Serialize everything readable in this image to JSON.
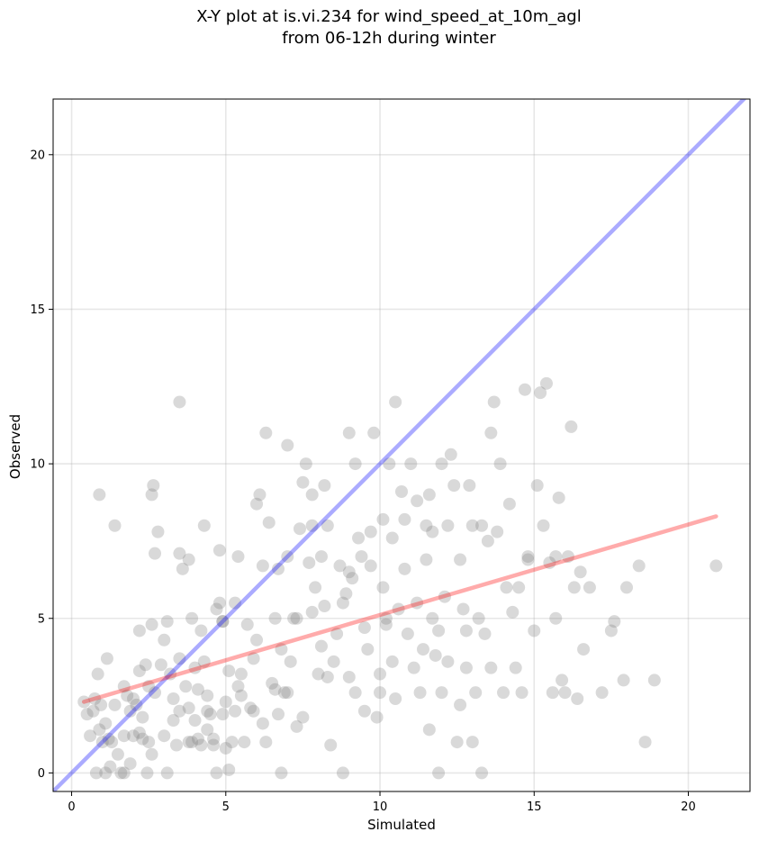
{
  "chart_data": {
    "type": "scatter",
    "title": [
      "X-Y plot at is.vi.234 for wind_speed_at_10m_agl",
      "from 06-12h during winter"
    ],
    "xlabel": "Simulated",
    "ylabel": "Observed",
    "xlim": [
      -0.6,
      22.0
    ],
    "ylim": [
      -0.6,
      21.8
    ],
    "xticks": [
      0,
      5,
      10,
      15,
      20
    ],
    "yticks": [
      0,
      5,
      10,
      15,
      20
    ],
    "grid": true,
    "colors": {
      "points": "#808080",
      "identity_line": "#0000ff",
      "fit_line": "#ff0000"
    },
    "lines": [
      {
        "kind": "one-to-one",
        "x": [
          -0.6,
          22.0
        ],
        "y": [
          -0.6,
          22.0
        ],
        "color": "#0000ff"
      },
      {
        "kind": "linear-fit",
        "x": [
          0.4,
          20.9
        ],
        "y": [
          2.3,
          8.3
        ],
        "color": "#ff0000"
      }
    ],
    "points": [
      [
        0.4,
        2.3
      ],
      [
        0.5,
        1.9
      ],
      [
        0.6,
        1.2
      ],
      [
        0.7,
        2.0
      ],
      [
        0.75,
        2.4
      ],
      [
        0.8,
        0.0
      ],
      [
        0.85,
        3.2
      ],
      [
        0.9,
        1.4
      ],
      [
        0.95,
        2.2
      ],
      [
        1.0,
        1.0
      ],
      [
        0.9,
        9.0
      ],
      [
        1.1,
        1.6
      ],
      [
        1.1,
        0.0
      ],
      [
        1.2,
        1.1
      ],
      [
        1.15,
        3.7
      ],
      [
        1.25,
        0.2
      ],
      [
        1.3,
        1.0
      ],
      [
        1.4,
        2.2
      ],
      [
        1.4,
        8.0
      ],
      [
        1.5,
        0.6
      ],
      [
        1.6,
        0.0
      ],
      [
        1.7,
        1.2
      ],
      [
        1.7,
        0.0
      ],
      [
        1.8,
        2.5
      ],
      [
        1.9,
        2.0
      ],
      [
        1.9,
        0.3
      ],
      [
        2.0,
        2.4
      ],
      [
        2.0,
        1.2
      ],
      [
        2.1,
        2.2
      ],
      [
        2.2,
        4.6
      ],
      [
        2.2,
        3.3
      ],
      [
        2.3,
        1.1
      ],
      [
        2.3,
        1.8
      ],
      [
        2.4,
        3.5
      ],
      [
        2.45,
        0.0
      ],
      [
        2.5,
        2.8
      ],
      [
        2.5,
        1.0
      ],
      [
        2.6,
        4.8
      ],
      [
        2.6,
        0.6
      ],
      [
        2.7,
        2.6
      ],
      [
        2.6,
        9.0
      ],
      [
        2.65,
        9.3
      ],
      [
        2.7,
        7.1
      ],
      [
        2.8,
        7.8
      ],
      [
        2.9,
        3.5
      ],
      [
        3.0,
        1.2
      ],
      [
        3.0,
        4.3
      ],
      [
        3.1,
        4.9
      ],
      [
        3.1,
        0.0
      ],
      [
        3.2,
        3.2
      ],
      [
        3.3,
        2.4
      ],
      [
        3.3,
        1.7
      ],
      [
        3.4,
        0.9
      ],
      [
        3.5,
        2.0
      ],
      [
        3.5,
        3.7
      ],
      [
        3.5,
        12.0
      ],
      [
        3.5,
        7.1
      ],
      [
        3.6,
        6.6
      ],
      [
        3.7,
        2.8
      ],
      [
        3.8,
        6.9
      ],
      [
        3.8,
        2.1
      ],
      [
        3.9,
        1.0
      ],
      [
        3.9,
        5.0
      ],
      [
        4.0,
        3.4
      ],
      [
        4.0,
        1.7
      ],
      [
        4.1,
        2.7
      ],
      [
        4.1,
        1.1
      ],
      [
        4.2,
        0.9
      ],
      [
        4.2,
        4.6
      ],
      [
        4.3,
        3.6
      ],
      [
        4.3,
        8.0
      ],
      [
        4.4,
        2.5
      ],
      [
        4.4,
        1.4
      ],
      [
        4.5,
        1.9
      ],
      [
        4.6,
        0.9
      ],
      [
        4.6,
        1.1
      ],
      [
        4.7,
        0.0
      ],
      [
        4.7,
        5.3
      ],
      [
        4.8,
        5.5
      ],
      [
        4.8,
        7.2
      ],
      [
        4.9,
        1.9
      ],
      [
        4.9,
        4.9
      ],
      [
        5.0,
        2.3
      ],
      [
        5.0,
        0.8
      ],
      [
        5.1,
        0.1
      ],
      [
        5.1,
        3.3
      ],
      [
        5.2,
        1.0
      ],
      [
        5.3,
        2.0
      ],
      [
        5.3,
        5.5
      ],
      [
        5.4,
        7.0
      ],
      [
        5.4,
        2.8
      ],
      [
        5.5,
        2.5
      ],
      [
        5.5,
        3.2
      ],
      [
        5.6,
        1.0
      ],
      [
        5.7,
        4.8
      ],
      [
        5.8,
        2.1
      ],
      [
        5.9,
        3.7
      ],
      [
        6.0,
        4.3
      ],
      [
        6.0,
        8.7
      ],
      [
        6.1,
        9.0
      ],
      [
        6.2,
        1.6
      ],
      [
        6.2,
        6.7
      ],
      [
        6.3,
        11.0
      ],
      [
        6.3,
        1.0
      ],
      [
        6.4,
        8.1
      ],
      [
        6.5,
        2.9
      ],
      [
        6.6,
        2.7
      ],
      [
        6.6,
        5.0
      ],
      [
        6.7,
        6.6
      ],
      [
        6.8,
        0.0
      ],
      [
        6.8,
        4.0
      ],
      [
        6.9,
        2.6
      ],
      [
        7.0,
        10.6
      ],
      [
        7.0,
        7.0
      ],
      [
        7.0,
        2.6
      ],
      [
        7.1,
        3.6
      ],
      [
        7.2,
        5.0
      ],
      [
        7.3,
        1.5
      ],
      [
        7.4,
        7.9
      ],
      [
        7.5,
        9.4
      ],
      [
        7.5,
        1.8
      ],
      [
        7.6,
        10.0
      ],
      [
        7.7,
        6.8
      ],
      [
        7.8,
        5.2
      ],
      [
        7.8,
        9.0
      ],
      [
        7.9,
        6.0
      ],
      [
        8.0,
        3.2
      ],
      [
        8.1,
        7.0
      ],
      [
        8.1,
        4.1
      ],
      [
        8.2,
        5.4
      ],
      [
        8.2,
        9.3
      ],
      [
        8.3,
        8.0
      ],
      [
        8.4,
        0.9
      ],
      [
        8.5,
        3.6
      ],
      [
        8.6,
        4.5
      ],
      [
        8.7,
        6.7
      ],
      [
        8.8,
        5.5
      ],
      [
        8.9,
        5.8
      ],
      [
        9.0,
        3.1
      ],
      [
        9.0,
        6.5
      ],
      [
        9.1,
        6.3
      ],
      [
        9.2,
        10.0
      ],
      [
        9.3,
        7.6
      ],
      [
        9.4,
        7.0
      ],
      [
        9.5,
        2.0
      ],
      [
        9.5,
        4.7
      ],
      [
        9.6,
        4.0
      ],
      [
        9.7,
        6.7
      ],
      [
        9.7,
        7.8
      ],
      [
        9.8,
        11.0
      ],
      [
        9.9,
        1.8
      ],
      [
        10.0,
        2.6
      ],
      [
        10.0,
        3.2
      ],
      [
        10.1,
        6.0
      ],
      [
        10.1,
        8.2
      ],
      [
        10.2,
        4.8
      ],
      [
        10.2,
        5.0
      ],
      [
        10.3,
        10.0
      ],
      [
        10.4,
        7.6
      ],
      [
        10.5,
        2.4
      ],
      [
        10.5,
        12.0
      ],
      [
        10.6,
        5.3
      ],
      [
        10.7,
        9.1
      ],
      [
        10.8,
        6.6
      ],
      [
        10.9,
        4.5
      ],
      [
        11.0,
        10.0
      ],
      [
        11.1,
        3.4
      ],
      [
        11.2,
        8.8
      ],
      [
        11.2,
        5.5
      ],
      [
        11.3,
        2.6
      ],
      [
        11.4,
        4.0
      ],
      [
        11.5,
        6.9
      ],
      [
        11.5,
        8.0
      ],
      [
        11.6,
        1.4
      ],
      [
        11.7,
        5.0
      ],
      [
        11.7,
        7.8
      ],
      [
        11.8,
        3.8
      ],
      [
        11.9,
        0.0
      ],
      [
        12.0,
        10.0
      ],
      [
        12.0,
        2.6
      ],
      [
        12.1,
        5.7
      ],
      [
        12.2,
        8.0
      ],
      [
        12.2,
        3.6
      ],
      [
        12.3,
        10.3
      ],
      [
        12.4,
        9.3
      ],
      [
        12.5,
        1.0
      ],
      [
        12.6,
        6.9
      ],
      [
        12.7,
        5.3
      ],
      [
        12.8,
        3.4
      ],
      [
        12.8,
        4.6
      ],
      [
        12.9,
        9.3
      ],
      [
        13.0,
        8.0
      ],
      [
        13.0,
        1.0
      ],
      [
        13.1,
        2.6
      ],
      [
        13.2,
        5.0
      ],
      [
        13.3,
        8.0
      ],
      [
        13.4,
        4.5
      ],
      [
        13.5,
        7.5
      ],
      [
        13.6,
        3.4
      ],
      [
        13.6,
        11.0
      ],
      [
        13.7,
        12.0
      ],
      [
        13.8,
        7.8
      ],
      [
        13.9,
        10.0
      ],
      [
        14.0,
        2.6
      ],
      [
        14.1,
        6.0
      ],
      [
        14.2,
        8.7
      ],
      [
        14.3,
        5.2
      ],
      [
        14.4,
        3.4
      ],
      [
        14.5,
        6.0
      ],
      [
        14.6,
        2.6
      ],
      [
        14.7,
        12.4
      ],
      [
        14.8,
        7.0
      ],
      [
        15.0,
        4.6
      ],
      [
        15.1,
        9.3
      ],
      [
        15.2,
        12.3
      ],
      [
        15.3,
        8.0
      ],
      [
        15.4,
        12.6
      ],
      [
        15.5,
        6.8
      ],
      [
        15.6,
        2.6
      ],
      [
        15.7,
        7.0
      ],
      [
        15.8,
        8.9
      ],
      [
        15.9,
        3.0
      ],
      [
        16.0,
        2.6
      ],
      [
        16.1,
        7.0
      ],
      [
        16.2,
        11.2
      ],
      [
        16.3,
        6.0
      ],
      [
        16.4,
        2.4
      ],
      [
        16.5,
        6.5
      ],
      [
        16.6,
        4.0
      ],
      [
        16.8,
        6.0
      ],
      [
        17.2,
        2.6
      ],
      [
        17.5,
        4.6
      ],
      [
        17.6,
        4.9
      ],
      [
        17.9,
        3.0
      ],
      [
        18.0,
        6.0
      ],
      [
        18.4,
        6.7
      ],
      [
        18.6,
        1.0
      ],
      [
        18.9,
        3.0
      ],
      [
        20.9,
        6.7
      ],
      [
        11.9,
        4.6
      ],
      [
        9.0,
        11.0
      ],
      [
        10.4,
        3.6
      ],
      [
        8.8,
        0.0
      ],
      [
        7.8,
        8.0
      ],
      [
        5.9,
        2.0
      ],
      [
        6.7,
        1.9
      ],
      [
        12.6,
        2.2
      ],
      [
        3.8,
        1.0
      ],
      [
        4.9,
        4.9
      ],
      [
        13.3,
        0.0
      ],
      [
        11.6,
        9.0
      ],
      [
        10.8,
        8.2
      ],
      [
        9.2,
        2.6
      ],
      [
        8.3,
        3.1
      ],
      [
        14.8,
        6.9
      ],
      [
        15.7,
        5.0
      ],
      [
        2.2,
        1.3
      ],
      [
        1.7,
        2.8
      ],
      [
        4.4,
        2.0
      ],
      [
        7.3,
        5.0
      ]
    ]
  }
}
